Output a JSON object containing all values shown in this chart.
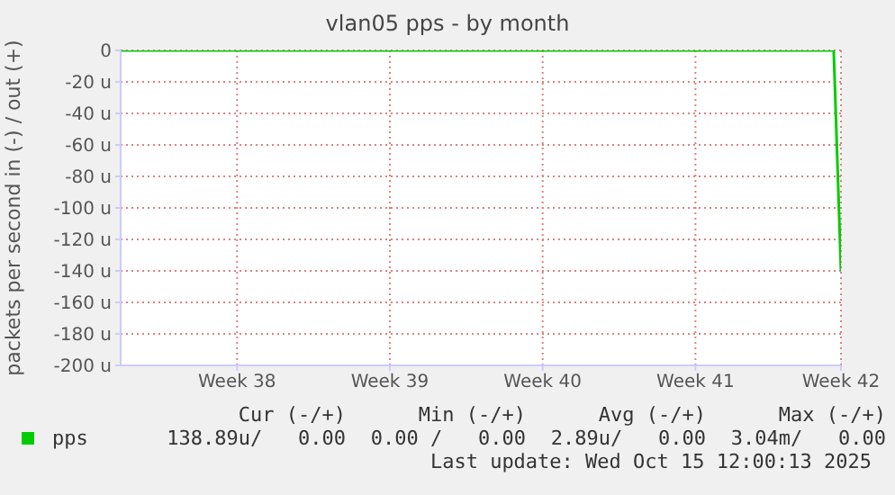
{
  "chart_data": {
    "type": "line",
    "title": "vlan05 pps - by month",
    "ylabel": "packets per second in (-) / out (+)",
    "categories": [
      null,
      null,
      null,
      null,
      null,
      null,
      null,
      null,
      null,
      null,
      null,
      null,
      null,
      null,
      null,
      null,
      "Week 38",
      null,
      null,
      null,
      null,
      null,
      null,
      null,
      null,
      null,
      null,
      null,
      null,
      null,
      null,
      null,
      null,
      null,
      null,
      null,
      null,
      "Week 39",
      null,
      null,
      null,
      null,
      null,
      null,
      null,
      null,
      null,
      null,
      null,
      null,
      null,
      null,
      null,
      null,
      null,
      null,
      null,
      null,
      "Week 40",
      null,
      null,
      null,
      null,
      null,
      null,
      null,
      null,
      null,
      null,
      null,
      null,
      null,
      null,
      null,
      null,
      null,
      null,
      null,
      null,
      "Week 41",
      null,
      null,
      null,
      null,
      null,
      null,
      null,
      null,
      null,
      null,
      null,
      null,
      null,
      null,
      null,
      null,
      null,
      null,
      null,
      "Week 42"
    ],
    "ylim": [
      -200,
      0
    ],
    "yticks": [
      {
        "value": -200,
        "label": "-200 u"
      },
      {
        "value": -180,
        "label": "-180 u"
      },
      {
        "value": -160,
        "label": "-160 u"
      },
      {
        "value": -140,
        "label": "-140 u"
      },
      {
        "value": -120,
        "label": "-120 u"
      },
      {
        "value": -100,
        "label": "-100 u"
      },
      {
        "value": -80,
        "label": "-80 u"
      },
      {
        "value": -60,
        "label": "-60 u"
      },
      {
        "value": -40,
        "label": "-40 u"
      },
      {
        "value": -20,
        "label": "-20 u"
      },
      0
    ],
    "series": [
      {
        "name": "pps",
        "color": "#00cc00",
        "values": [
          0,
          0,
          0,
          0,
          0,
          0,
          0,
          0,
          0,
          0,
          0,
          0,
          0,
          0,
          0,
          0,
          0,
          0,
          0,
          0,
          0,
          0,
          0,
          0,
          0,
          0,
          0,
          0,
          0,
          0,
          0,
          0,
          0,
          0,
          0,
          0,
          0,
          0,
          0,
          0,
          0,
          0,
          0,
          0,
          0,
          0,
          0,
          0,
          0,
          0,
          0,
          0,
          0,
          0,
          0,
          0,
          0,
          0,
          0,
          0,
          0,
          0,
          0,
          0,
          0,
          0,
          0,
          0,
          0,
          0,
          0,
          0,
          0,
          0,
          0,
          0,
          0,
          0,
          0,
          0,
          0,
          0,
          0,
          0,
          0,
          0,
          0,
          0,
          0,
          0,
          0,
          0,
          0,
          0,
          0,
          0,
          0,
          0,
          0,
          -140
        ]
      }
    ],
    "grid": true,
    "legend": "bottom",
    "marker": "none",
    "line_style": "solid",
    "annotations": [
      "Cur (-/+)",
      "Min (-/+)",
      "Avg (-/+)",
      "Max (-/+)",
      "138.89u/   0.00",
      "0.00 /   0.00",
      "2.89u/   0.00",
      "3.04m/   0.00",
      "Last update: Wed Oct 15 12:00:13 2025"
    ]
  }
}
